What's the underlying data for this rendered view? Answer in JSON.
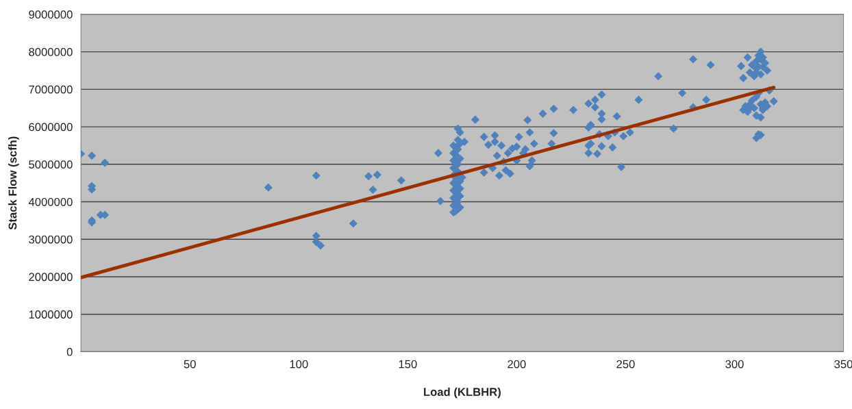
{
  "chart_data": {
    "type": "scatter",
    "xlabel": "Load (KLBHR)",
    "ylabel": "Stack Flow (scfh)",
    "xlim": [
      0,
      350
    ],
    "xticks": [
      50,
      100,
      150,
      200,
      250,
      300,
      350
    ],
    "ylim": [
      0,
      9000000
    ],
    "yticks": [
      0,
      1000000,
      2000000,
      3000000,
      4000000,
      5000000,
      6000000,
      7000000,
      8000000,
      9000000
    ],
    "grid": "y",
    "legend": false,
    "series": [
      {
        "type": "scatter",
        "marker": "diamond",
        "color": "#4f81bd",
        "x": [
          0,
          5,
          5,
          5,
          5,
          9,
          11,
          5,
          11,
          86,
          108,
          108,
          108,
          110,
          125,
          132,
          134,
          136,
          147,
          164,
          165,
          171,
          171,
          171,
          171,
          171,
          171,
          171,
          171,
          171,
          171,
          172,
          172,
          172,
          172,
          172,
          172,
          172,
          172,
          172,
          172,
          173,
          173,
          173,
          173,
          173,
          173,
          173,
          173,
          173,
          174,
          174,
          174,
          174,
          174,
          174,
          174,
          174,
          175,
          176,
          181,
          185,
          185,
          187,
          189,
          190,
          190,
          191,
          192,
          193,
          194,
          195,
          196,
          197,
          198,
          200,
          200,
          201,
          203,
          204,
          205,
          206,
          206,
          207,
          208,
          212,
          216,
          217,
          217,
          226,
          233,
          233,
          234,
          233,
          233,
          234,
          236,
          236,
          237,
          238,
          239,
          239,
          239,
          239,
          242,
          244,
          245,
          246,
          248,
          249,
          252,
          256,
          265,
          272,
          276,
          281,
          281,
          287,
          289,
          303,
          304,
          306,
          307,
          308,
          309,
          310,
          310,
          311,
          312,
          312,
          313,
          314,
          315,
          310,
          311,
          312,
          313,
          304,
          305,
          306,
          307,
          308,
          309,
          310,
          311,
          312,
          313,
          314,
          316,
          318,
          310,
          312,
          313,
          315,
          307,
          311,
          310,
          312
        ],
        "values": [
          5280000,
          4420000,
          4330000,
          3500000,
          3450000,
          3650000,
          3650000,
          5230000,
          5040000,
          4380000,
          4700000,
          3090000,
          2930000,
          2830000,
          3420000,
          4680000,
          4320000,
          4720000,
          4570000,
          5300000,
          4020000,
          3720000,
          3900000,
          4100000,
          4300000,
          4500000,
          4700000,
          4900000,
          5100000,
          5300000,
          5500000,
          3750000,
          3850000,
          4050000,
          4250000,
          4450000,
          4650000,
          4850000,
          5050000,
          5250000,
          5450000,
          3800000,
          4000000,
          4200000,
          4400000,
          4800000,
          5000000,
          5400000,
          5650000,
          5950000,
          3850000,
          4150000,
          4350000,
          4550000,
          4750000,
          5150000,
          5550000,
          5850000,
          4650000,
          5600000,
          6190000,
          4780000,
          5730000,
          5520000,
          4900000,
          5770000,
          5600000,
          5230000,
          4700000,
          5500000,
          5070000,
          4840000,
          5300000,
          4750000,
          5420000,
          5470000,
          5100000,
          5730000,
          5300000,
          5400000,
          6180000,
          5850000,
          4950000,
          5100000,
          5550000,
          6350000,
          5550000,
          5830000,
          6480000,
          6450000,
          6620000,
          5980000,
          6050000,
          5500000,
          5300000,
          5550000,
          6720000,
          6520000,
          5280000,
          5800000,
          6350000,
          6200000,
          6860000,
          5480000,
          5750000,
          5450000,
          5850000,
          6280000,
          4930000,
          5750000,
          5850000,
          6720000,
          7350000,
          5950000,
          6900000,
          7800000,
          6520000,
          6720000,
          7650000,
          7620000,
          7300000,
          7850000,
          7450000,
          7650000,
          7350000,
          7550000,
          7750000,
          7900000,
          8000000,
          7800000,
          7600000,
          7700000,
          7500000,
          7450000,
          7600000,
          7400000,
          7850000,
          6450000,
          6550000,
          6400000,
          6600000,
          6700000,
          6500000,
          6800000,
          6900000,
          6600000,
          6450000,
          6650000,
          6970000,
          6680000,
          6300000,
          6250000,
          6500000,
          6550000,
          6500000,
          5800000,
          5700000,
          5780000
        ]
      },
      {
        "type": "line",
        "color": "#9c3000",
        "x": [
          0,
          318
        ],
        "values": [
          1980000,
          7050000
        ]
      }
    ]
  }
}
